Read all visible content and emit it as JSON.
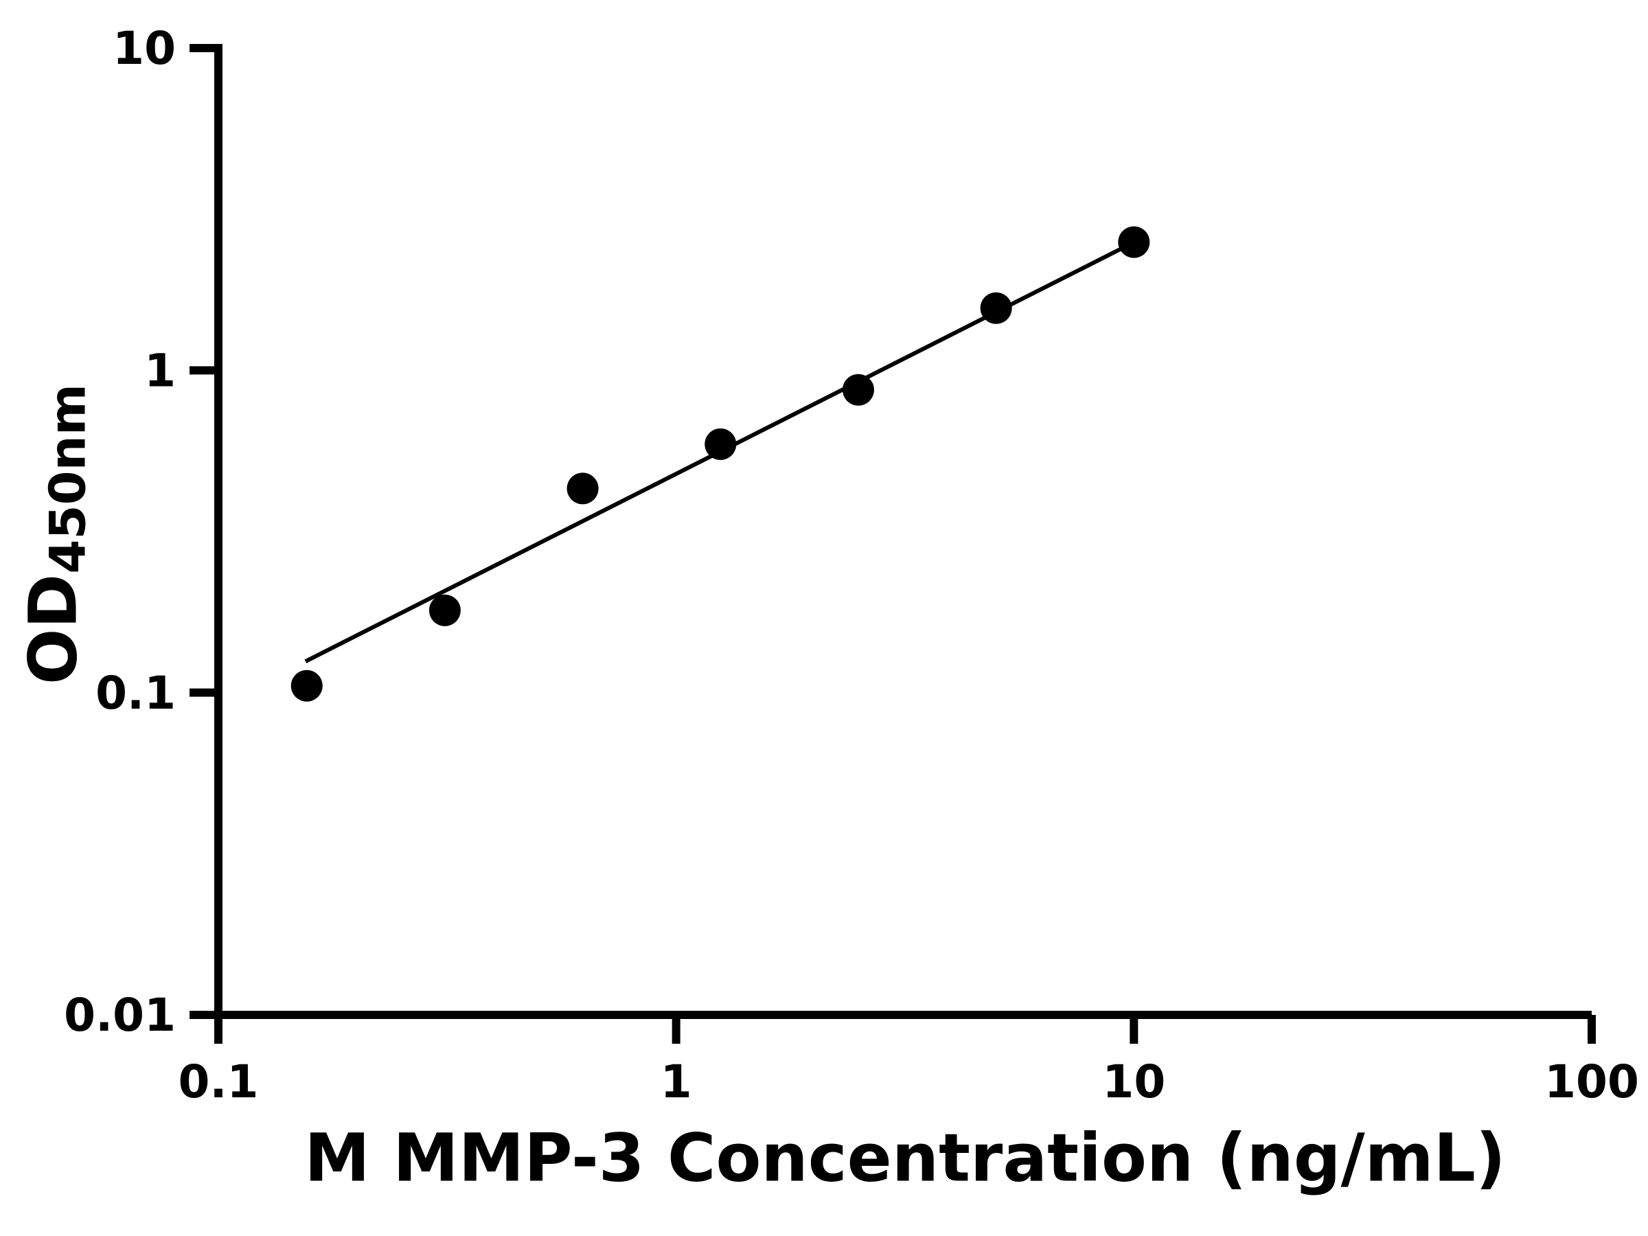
{
  "page": {
    "background_color": "#ffffff",
    "foreground_color": "#000000"
  },
  "chart_data": {
    "type": "scatter",
    "title": "",
    "xlabel": "M MMP-3 Concentration (ng/mL)",
    "ylabel_main": "OD",
    "ylabel_sub": "450nm",
    "x_scale": "log",
    "y_scale": "log",
    "xlim": [
      0.1,
      100
    ],
    "ylim": [
      0.01,
      10
    ],
    "x_ticks": [
      0.1,
      1,
      10,
      100
    ],
    "x_tick_labels": [
      "0.1",
      "1",
      "10",
      "100"
    ],
    "y_ticks": [
      0.01,
      0.1,
      1,
      10
    ],
    "y_tick_labels": [
      "0.01",
      "0.1",
      "1",
      "10"
    ],
    "grid": false,
    "legend": false,
    "marker": "filled-circle",
    "marker_color": "#000000",
    "series": [
      {
        "name": "standard-curve",
        "color": "#000000",
        "points": [
          {
            "x": 0.156,
            "y": 0.105
          },
          {
            "x": 0.3125,
            "y": 0.18
          },
          {
            "x": 0.625,
            "y": 0.43
          },
          {
            "x": 1.25,
            "y": 0.59
          },
          {
            "x": 2.5,
            "y": 0.87
          },
          {
            "x": 5,
            "y": 1.56
          },
          {
            "x": 10,
            "y": 2.5
          }
        ]
      }
    ],
    "trendline": {
      "type": "linear-loglog-fit",
      "x_start": 0.155,
      "y_start": 0.125,
      "x_end": 10.3,
      "y_end": 2.55,
      "color": "#000000"
    }
  }
}
